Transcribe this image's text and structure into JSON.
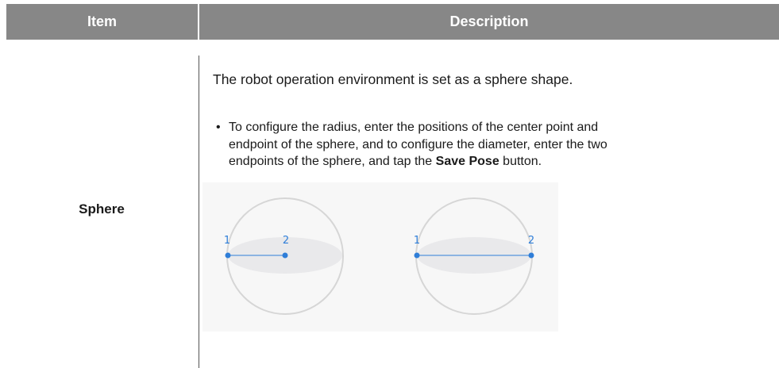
{
  "table": {
    "header": [
      "Item",
      "Description"
    ],
    "rows": [
      {
        "item": "Sphere",
        "description": {
          "paragraph": "The robot operation environment is set as a sphere shape.",
          "bullet": {
            "before": "To configure the radius, enter the positions of the center point and endpoint of the sphere, and to configure the diameter, enter the two endpoints of the sphere, and tap the",
            "bold": "Save Pose",
            "after": "button."
          },
          "figure": {
            "radius_labels": [
              "1",
              "2"
            ],
            "diameter_labels": [
              "1",
              "2"
            ]
          }
        }
      }
    ]
  }
}
